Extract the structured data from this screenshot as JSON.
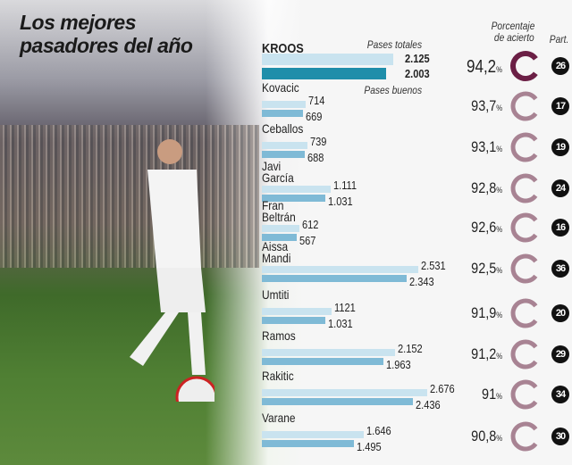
{
  "title_line1": "Los mejores",
  "title_line2": "pasadores del año",
  "headers": {
    "total": "Pases totales",
    "good": "Pases buenos",
    "pct_line1": "Porcentaje",
    "pct_line2": "de acierto",
    "matches": "Part."
  },
  "colors": {
    "total_bar": "#c9e3ef",
    "good_bar": "#7fbad6",
    "highlight_bar": "#1f8eaa",
    "highlight_ring": "#6b1f45",
    "ring": "#a88393"
  },
  "chart_data": {
    "type": "bar",
    "categories": [
      "KROOS",
      "Kovacic",
      "Ceballos",
      "Javi\nGarcía",
      "Fran\nBeltrán",
      "Aissa\nMandi",
      "Umtiti",
      "Ramos",
      "Rakitic",
      "Varane"
    ],
    "series": [
      {
        "name": "Pases totales",
        "values": [
          2125,
          714,
          739,
          1111,
          612,
          2531,
          1121,
          2152,
          2676,
          1646
        ],
        "labels": [
          "2.125",
          "714",
          "739",
          "1.111",
          "612",
          "2.531",
          "1121",
          "2.152",
          "2.676",
          "1.646"
        ]
      },
      {
        "name": "Pases buenos",
        "values": [
          2003,
          669,
          688,
          1031,
          567,
          2343,
          1031,
          1963,
          2436,
          1495
        ],
        "labels": [
          "2.003",
          "669",
          "688",
          "1.031",
          "567",
          "2.343",
          "1.031",
          "1.963",
          "2.436",
          "1.495"
        ]
      }
    ],
    "accuracy": [
      "94,2",
      "93,7",
      "93,1",
      "92,8",
      "92,6",
      "92,5",
      "91,9",
      "91,2",
      "91",
      "90,8"
    ],
    "accuracy_unit": "%",
    "matches": [
      "26",
      "17",
      "19",
      "24",
      "16",
      "36",
      "20",
      "29",
      "34",
      "30"
    ]
  }
}
